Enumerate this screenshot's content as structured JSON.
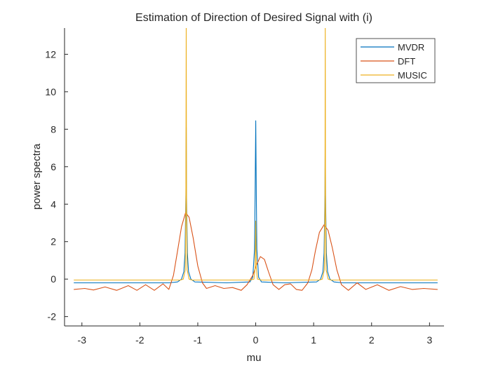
{
  "chart_data": {
    "type": "line",
    "title": "Estimation of Direction of Desired Signal with (i)",
    "xlabel": "mu",
    "ylabel": "power spectra",
    "xlim": [
      -3.3,
      3.25
    ],
    "ylim": [
      -2.5,
      13.4
    ],
    "xticks": [
      -3,
      -2,
      -1,
      0,
      1,
      2,
      3
    ],
    "yticks": [
      -2,
      0,
      2,
      4,
      6,
      8,
      10,
      12
    ],
    "xtick_labels": [
      "-3",
      "-2",
      "-1",
      "0",
      "1",
      "2",
      "3"
    ],
    "ytick_labels": [
      "-2",
      "0",
      "2",
      "4",
      "6",
      "8",
      "10",
      "12"
    ],
    "grid": false,
    "legend_position": "top-right",
    "series": [
      {
        "name": "MVDR",
        "color": "#0072BD",
        "x": [
          -3.14,
          -1.5,
          -1.35,
          -1.28,
          -1.24,
          -1.22,
          -1.205,
          -1.2,
          -1.195,
          -1.18,
          -1.16,
          -1.12,
          -1.05,
          -0.5,
          -0.1,
          -0.05,
          -0.02,
          -0.01,
          0,
          0.01,
          0.02,
          0.05,
          0.1,
          0.5,
          1.05,
          1.12,
          1.16,
          1.18,
          1.195,
          1.2,
          1.205,
          1.22,
          1.24,
          1.28,
          1.35,
          1.5,
          3.14
        ],
        "y": [
          -0.2,
          -0.2,
          -0.15,
          0.0,
          0.4,
          1.4,
          4.5,
          8.1,
          4.5,
          1.4,
          0.4,
          0.0,
          -0.15,
          -0.2,
          -0.15,
          0.1,
          1.6,
          4.5,
          8.45,
          4.5,
          1.6,
          0.1,
          -0.15,
          -0.2,
          -0.15,
          0.0,
          0.4,
          1.4,
          4.5,
          8.1,
          4.5,
          1.4,
          0.4,
          0.0,
          -0.15,
          -0.2,
          -0.2
        ]
      },
      {
        "name": "DFT",
        "color": "#D95319",
        "x": [
          -3.14,
          -2.95,
          -2.8,
          -2.6,
          -2.4,
          -2.2,
          -2.05,
          -1.9,
          -1.75,
          -1.6,
          -1.5,
          -1.42,
          -1.35,
          -1.28,
          -1.21,
          -1.15,
          -1.08,
          -1.0,
          -0.92,
          -0.85,
          -0.7,
          -0.55,
          -0.4,
          -0.25,
          -0.15,
          -0.05,
          0.02,
          0.08,
          0.15,
          0.22,
          0.3,
          0.4,
          0.5,
          0.6,
          0.7,
          0.8,
          0.9,
          0.97,
          1.03,
          1.1,
          1.18,
          1.25,
          1.32,
          1.4,
          1.48,
          1.6,
          1.75,
          1.9,
          2.1,
          2.3,
          2.5,
          2.7,
          2.9,
          3.14
        ],
        "y": [
          -0.55,
          -0.5,
          -0.58,
          -0.42,
          -0.6,
          -0.35,
          -0.6,
          -0.3,
          -0.6,
          -0.25,
          -0.55,
          0.2,
          1.5,
          2.8,
          3.55,
          3.3,
          2.2,
          0.7,
          -0.2,
          -0.5,
          -0.35,
          -0.5,
          -0.45,
          -0.6,
          -0.3,
          0.2,
          0.8,
          1.2,
          1.05,
          0.4,
          -0.3,
          -0.55,
          -0.3,
          -0.25,
          -0.55,
          -0.6,
          -0.2,
          0.5,
          1.5,
          2.5,
          2.9,
          2.6,
          1.7,
          0.5,
          -0.3,
          -0.6,
          -0.2,
          -0.55,
          -0.3,
          -0.6,
          -0.4,
          -0.55,
          -0.5,
          -0.55
        ]
      },
      {
        "name": "MUSIC",
        "color": "#EDB120",
        "x": [
          -3.14,
          -1.3,
          -1.25,
          -1.215,
          -1.205,
          -1.2,
          -1.195,
          -1.185,
          -1.15,
          -1.1,
          -0.1,
          -0.03,
          -0.01,
          0,
          0.01,
          0.03,
          0.1,
          1.1,
          1.15,
          1.185,
          1.195,
          1.2,
          1.205,
          1.215,
          1.25,
          1.3,
          3.14
        ],
        "y": [
          -0.05,
          -0.05,
          0.0,
          0.5,
          4.0,
          14.0,
          4.0,
          0.5,
          0.0,
          -0.05,
          -0.05,
          0.0,
          0.6,
          3.1,
          0.6,
          0.0,
          -0.05,
          -0.05,
          0.0,
          0.5,
          4.0,
          14.0,
          4.0,
          0.5,
          0.0,
          -0.05,
          -0.05
        ]
      }
    ]
  }
}
